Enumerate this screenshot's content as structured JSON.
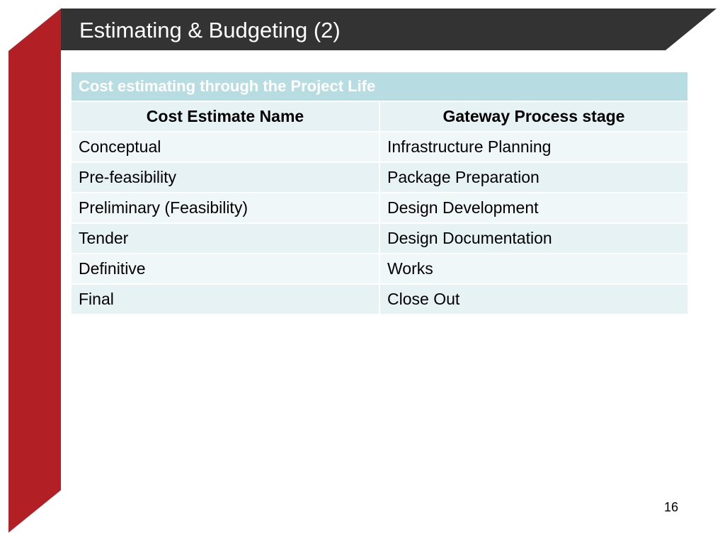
{
  "slide": {
    "title": "Estimating & Budgeting (2)",
    "page_number": "16"
  },
  "table": {
    "caption": "Cost estimating through the Project Life",
    "columns": [
      "Cost Estimate Name",
      "Gateway Process stage"
    ],
    "rows": [
      [
        "Conceptual",
        "Infrastructure Planning"
      ],
      [
        "Pre-feasibility",
        "Package Preparation"
      ],
      [
        "Preliminary (Feasibility)",
        "Design Development"
      ],
      [
        "Tender",
        "Design Documentation"
      ],
      [
        "Definitive",
        "Works"
      ],
      [
        "Final",
        "Close Out"
      ]
    ]
  },
  "colors": {
    "title_bar": "#333333",
    "accent_red": "#b22025",
    "table_caption_bg": "#b7dde2",
    "table_row_light": "#f0f7f8",
    "table_row_dark": "#e6f2f4"
  }
}
